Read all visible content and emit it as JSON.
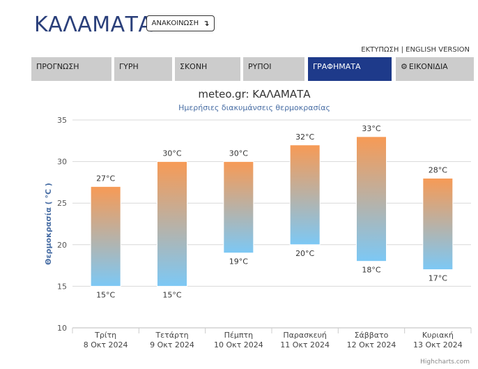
{
  "header": {
    "city": "ΚΑΛΑΜΑΤΑ",
    "announcement_label": "ΑΝΑΚΟΙΝΩΣΗ",
    "announcement_arrow": "↴"
  },
  "top_links": {
    "print": "ΕΚΤΥΠΩΣΗ",
    "separator": "|",
    "english": "ENGLISH VERSION"
  },
  "tabs": [
    {
      "label": "ΠΡΟΓΝΩΣΗ",
      "active": false
    },
    {
      "label": "ΓΥΡΗ",
      "active": false
    },
    {
      "label": "ΣΚΟΝΗ",
      "active": false
    },
    {
      "label": "ΡΥΠΟΙ",
      "active": false
    },
    {
      "label": "ΓΡΑΦΗΜΑΤΑ",
      "active": true
    },
    {
      "label": "ΕΙΚΟΝΙΔΙΑ",
      "active": false,
      "icon": "gear-icon"
    }
  ],
  "colors": {
    "brand": "#2a3f7a",
    "active_tab": "#1e3a8a",
    "tab_bg": "#cccccc",
    "bar_top": "#f79a55",
    "bar_bottom": "#7cc8f5",
    "axis_title": "#4a6fa5"
  },
  "chart_data": {
    "type": "bar",
    "subtype": "columnrange",
    "title": "meteo.gr: ΚΑΛΑΜΑΤΑ",
    "subtitle": "Ημερήσιες διακυμάνσεις θερμοκρασίας",
    "ylabel": "Θερμοκρασία ( °C )",
    "xlabel": "",
    "ylim": [
      10,
      35
    ],
    "yticks": [
      10,
      15,
      20,
      25,
      30,
      35
    ],
    "grid": true,
    "unit": "°C",
    "categories": [
      {
        "day": "Τρίτη",
        "date": "8 Οκτ 2024"
      },
      {
        "day": "Τετάρτη",
        "date": "9 Οκτ 2024"
      },
      {
        "day": "Πέμπτη",
        "date": "10 Οκτ 2024"
      },
      {
        "day": "Παρασκευή",
        "date": "11 Οκτ 2024"
      },
      {
        "day": "Σάββατο",
        "date": "12 Οκτ 2024"
      },
      {
        "day": "Κυριακή",
        "date": "13 Οκτ 2024"
      }
    ],
    "low": [
      15,
      15,
      19,
      20,
      18,
      17
    ],
    "high": [
      27,
      30,
      30,
      32,
      33,
      28
    ]
  },
  "credits": "Highcharts.com"
}
